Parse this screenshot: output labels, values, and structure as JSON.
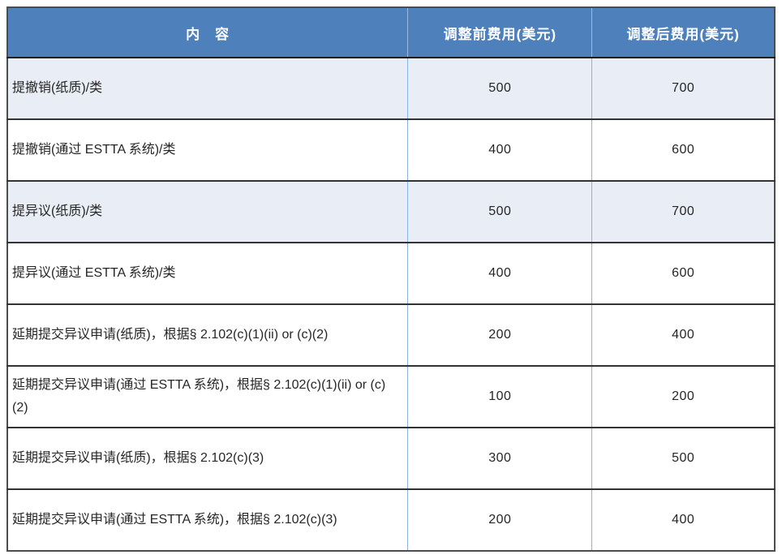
{
  "table": {
    "headers": [
      "内　容",
      "调整前费用(美元)",
      "调整后费用(美元)"
    ],
    "rows": [
      {
        "content": "提撤销(纸质)/类",
        "before": "500",
        "after": "700",
        "shaded": true
      },
      {
        "content": "提撤销(通过 ESTTA 系统)/类",
        "before": "400",
        "after": "600",
        "shaded": false
      },
      {
        "content": "提异议(纸质)/类",
        "before": "500",
        "after": "700",
        "shaded": true
      },
      {
        "content": "提异议(通过 ESTTA 系统)/类",
        "before": "400",
        "after": "600",
        "shaded": false
      },
      {
        "content": "延期提交异议申请(纸质)，根据§ 2.102(c)(1)(ii) or (c)(2)",
        "before": "200",
        "after": "400",
        "shaded": false
      },
      {
        "content": "延期提交异议申请(通过 ESTTA 系统)，根据§ 2.102(c)(1)(ii) or (c)(2)",
        "before": "100",
        "after": "200",
        "shaded": false
      },
      {
        "content": "延期提交异议申请(纸质)，根据§ 2.102(c)(3)",
        "before": "300",
        "after": "500",
        "shaded": false
      },
      {
        "content": "延期提交异议申请(通过 ESTTA 系统)，根据§ 2.102(c)(3)",
        "before": "200",
        "after": "400",
        "shaded": false
      }
    ],
    "colors": {
      "header_bg": "#4e80bc",
      "header_text": "#ffffff",
      "header_divider": "#9db9dc",
      "shaded_row_bg": "#e9edf5",
      "row_bg": "#ffffff",
      "vertical_border": "#8cb4e2",
      "horizontal_border": "#333333",
      "outer_border": "#4d4d4d",
      "text": "#262626"
    }
  }
}
